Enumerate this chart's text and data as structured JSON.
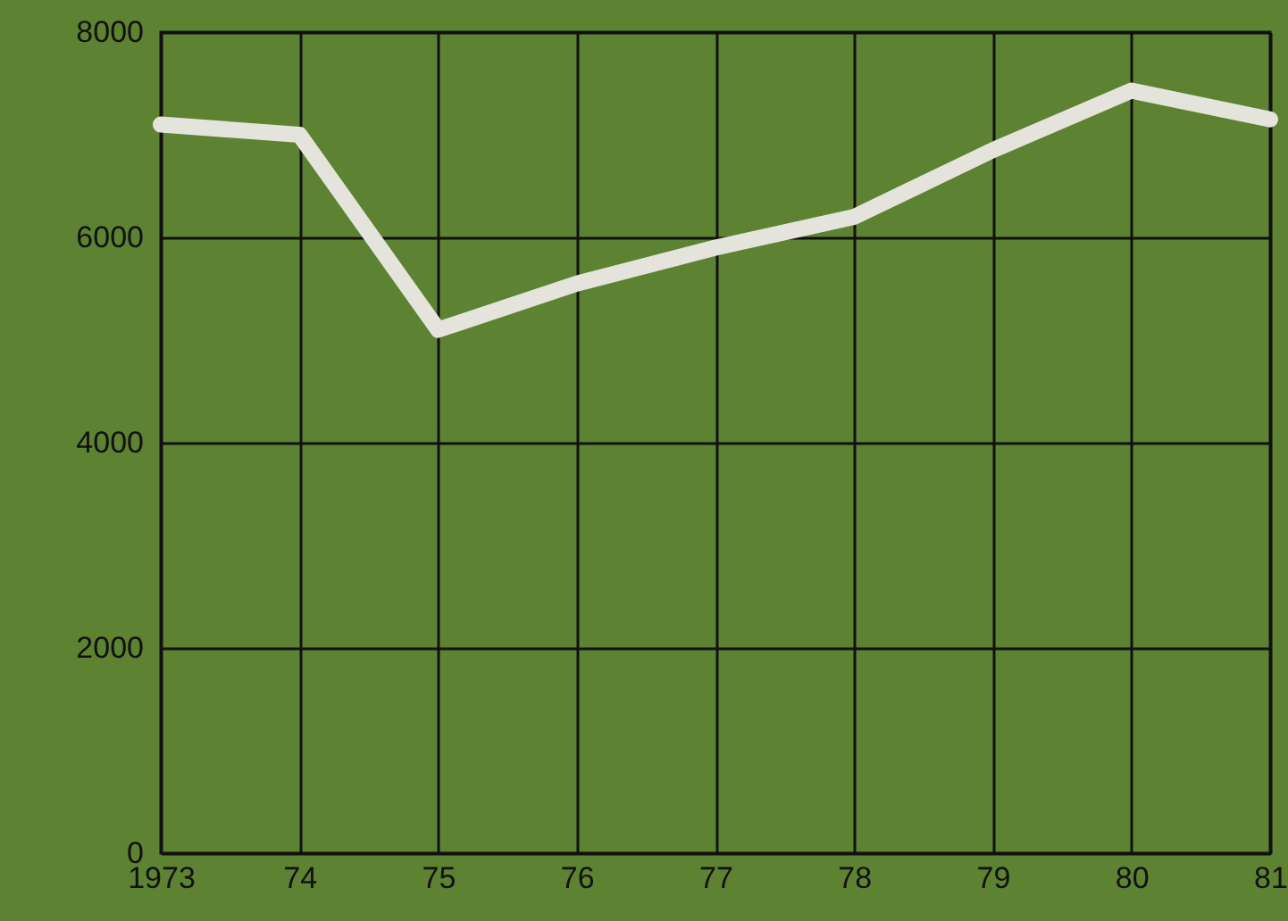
{
  "chart_data": {
    "type": "line",
    "x": [
      1973,
      1974,
      1975,
      1976,
      1977,
      1978,
      1979,
      1980,
      1981
    ],
    "series": [
      {
        "color": "#e4e4dc",
        "values": [
          7100,
          7000,
          5100,
          5550,
          5900,
          6200,
          6850,
          7430,
          7150
        ]
      }
    ],
    "xlim": [
      1973,
      1981
    ],
    "xticks": [
      {
        "value": 1973,
        "label": "1973"
      },
      {
        "value": 1974,
        "label": "74"
      },
      {
        "value": 1975,
        "label": "75"
      },
      {
        "value": 1976,
        "label": "76"
      },
      {
        "value": 1977,
        "label": "77"
      },
      {
        "value": 1978,
        "label": "78"
      },
      {
        "value": 1979,
        "label": "79"
      },
      {
        "value": 1980,
        "label": "80"
      },
      {
        "value": 1981,
        "label": "81"
      }
    ],
    "ylim": [
      0,
      8000
    ],
    "yticks": [
      0,
      2000,
      4000,
      6000,
      8000
    ],
    "grid": true,
    "marker": "none",
    "line_style": "solid"
  }
}
